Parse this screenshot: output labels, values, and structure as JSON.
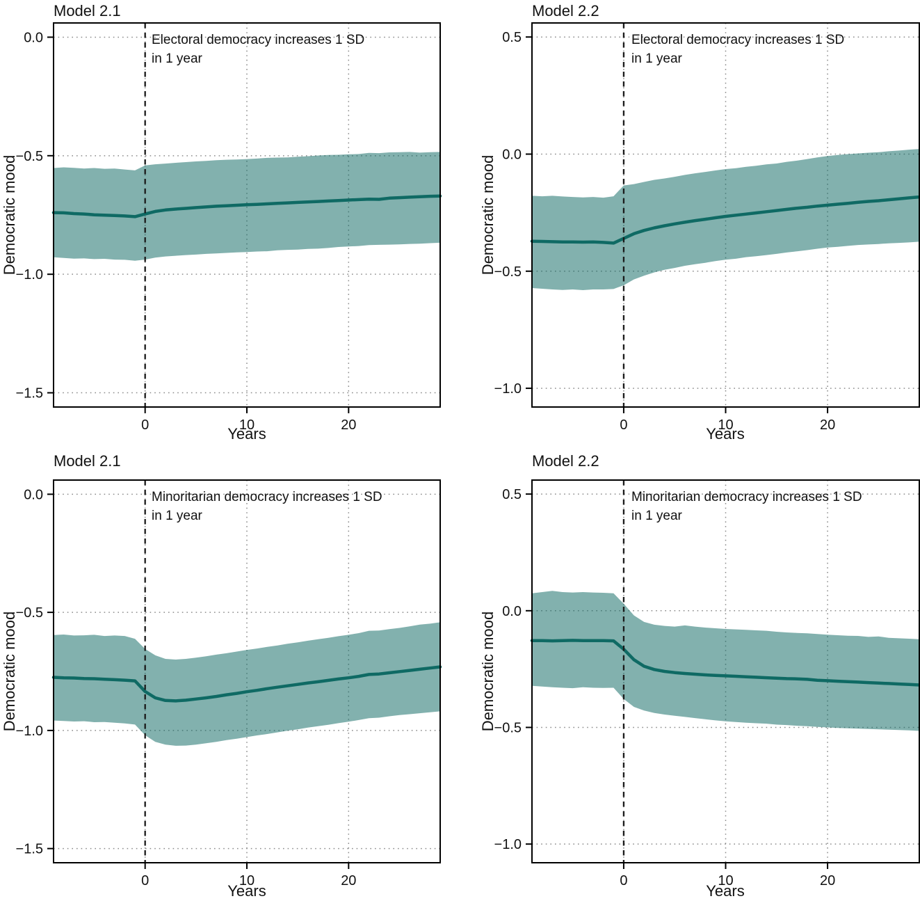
{
  "style": {
    "line_color": "#0f6a64",
    "band_color": "#0f6a64",
    "band_opacity": 0.52,
    "grid_color": "#8a8a8a",
    "event_line_color": "#1a1a1a",
    "border_color": "#000000",
    "tick_color": "#000000",
    "text_color": "#111111",
    "background": "#ffffff"
  },
  "chart_data": [
    {
      "type": "line",
      "title": "Model 2.1",
      "annotation_line1": "Electoral democracy increases 1 SD",
      "annotation_line2": "in 1 year",
      "xlabel": "Years",
      "ylabel": "Democratic mood",
      "legend": "none",
      "grid": true,
      "xlim": [
        -9,
        29
      ],
      "ylim": [
        -1.56,
        0.06
      ],
      "event_x": 0,
      "xticks": [
        {
          "v": 0,
          "label": "0"
        },
        {
          "v": 10,
          "label": "10"
        },
        {
          "v": 20,
          "label": "20"
        }
      ],
      "yticks": [
        {
          "v": 0,
          "label": "0.0"
        },
        {
          "v": -0.5,
          "label": "−0.5"
        },
        {
          "v": -1,
          "label": "−1.0"
        },
        {
          "v": -1.5,
          "label": "−1.5"
        }
      ],
      "x": [
        -9,
        -8,
        -7,
        -6,
        -5,
        -4,
        -3,
        -2,
        -1,
        0,
        1,
        2,
        3,
        4,
        5,
        6,
        7,
        8,
        9,
        10,
        11,
        12,
        13,
        14,
        15,
        16,
        17,
        18,
        19,
        20,
        21,
        22,
        23,
        24,
        25,
        26,
        27,
        28,
        29
      ],
      "mean": [
        -0.74,
        -0.741,
        -0.744,
        -0.746,
        -0.749,
        -0.751,
        -0.752,
        -0.754,
        -0.757,
        -0.746,
        -0.735,
        -0.729,
        -0.725,
        -0.722,
        -0.719,
        -0.716,
        -0.713,
        -0.711,
        -0.709,
        -0.707,
        -0.705,
        -0.703,
        -0.701,
        -0.699,
        -0.697,
        -0.695,
        -0.693,
        -0.691,
        -0.689,
        -0.687,
        -0.685,
        -0.683,
        -0.684,
        -0.679,
        -0.677,
        -0.675,
        -0.673,
        -0.671,
        -0.67
      ],
      "upper": [
        -0.552,
        -0.549,
        -0.551,
        -0.554,
        -0.552,
        -0.555,
        -0.554,
        -0.558,
        -0.562,
        -0.541,
        -0.536,
        -0.533,
        -0.53,
        -0.527,
        -0.524,
        -0.522,
        -0.519,
        -0.517,
        -0.516,
        -0.514,
        -0.512,
        -0.509,
        -0.508,
        -0.507,
        -0.504,
        -0.502,
        -0.499,
        -0.497,
        -0.496,
        -0.494,
        -0.493,
        -0.488,
        -0.489,
        -0.486,
        -0.485,
        -0.484,
        -0.487,
        -0.485,
        -0.484
      ],
      "lower": [
        -0.928,
        -0.931,
        -0.934,
        -0.933,
        -0.936,
        -0.935,
        -0.938,
        -0.939,
        -0.943,
        -0.938,
        -0.93,
        -0.925,
        -0.922,
        -0.919,
        -0.917,
        -0.914,
        -0.912,
        -0.91,
        -0.908,
        -0.906,
        -0.904,
        -0.903,
        -0.899,
        -0.897,
        -0.896,
        -0.893,
        -0.892,
        -0.889,
        -0.885,
        -0.883,
        -0.881,
        -0.877,
        -0.876,
        -0.875,
        -0.874,
        -0.872,
        -0.871,
        -0.869,
        -0.867
      ]
    },
    {
      "type": "line",
      "title": "Model 2.2",
      "annotation_line1": "Electoral democracy increases 1 SD",
      "annotation_line2": "in 1 year",
      "xlabel": "Years",
      "ylabel": "Democratic mood",
      "legend": "none",
      "grid": true,
      "xlim": [
        -9,
        29
      ],
      "ylim": [
        -1.08,
        0.56
      ],
      "event_x": 0,
      "xticks": [
        {
          "v": 0,
          "label": "0"
        },
        {
          "v": 10,
          "label": "10"
        },
        {
          "v": 20,
          "label": "20"
        }
      ],
      "yticks": [
        {
          "v": 0.5,
          "label": "0.5"
        },
        {
          "v": 0,
          "label": "0.0"
        },
        {
          "v": -0.5,
          "label": "−0.5"
        },
        {
          "v": -1,
          "label": "−1.0"
        }
      ],
      "x": [
        -9,
        -8,
        -7,
        -6,
        -5,
        -4,
        -3,
        -2,
        -1,
        0,
        1,
        2,
        3,
        4,
        5,
        6,
        7,
        8,
        9,
        10,
        11,
        12,
        13,
        14,
        15,
        16,
        17,
        18,
        19,
        20,
        21,
        22,
        23,
        24,
        25,
        26,
        27,
        28,
        29
      ],
      "mean": [
        -0.372,
        -0.373,
        -0.374,
        -0.375,
        -0.375,
        -0.376,
        -0.375,
        -0.377,
        -0.38,
        -0.36,
        -0.34,
        -0.326,
        -0.315,
        -0.306,
        -0.298,
        -0.291,
        -0.284,
        -0.278,
        -0.272,
        -0.266,
        -0.261,
        -0.256,
        -0.251,
        -0.246,
        -0.241,
        -0.236,
        -0.231,
        -0.227,
        -0.222,
        -0.218,
        -0.214,
        -0.21,
        -0.206,
        -0.202,
        -0.199,
        -0.195,
        -0.191,
        -0.187,
        -0.183
      ],
      "upper": [
        -0.178,
        -0.18,
        -0.178,
        -0.181,
        -0.183,
        -0.185,
        -0.183,
        -0.186,
        -0.18,
        -0.134,
        -0.128,
        -0.119,
        -0.11,
        -0.104,
        -0.097,
        -0.089,
        -0.082,
        -0.076,
        -0.07,
        -0.064,
        -0.06,
        -0.054,
        -0.05,
        -0.044,
        -0.04,
        -0.033,
        -0.028,
        -0.021,
        -0.014,
        -0.008,
        -0.004,
        0.0,
        0.003,
        0.006,
        0.008,
        0.012,
        0.015,
        0.019,
        0.022
      ],
      "lower": [
        -0.572,
        -0.575,
        -0.578,
        -0.58,
        -0.578,
        -0.581,
        -0.578,
        -0.578,
        -0.576,
        -0.56,
        -0.535,
        -0.519,
        -0.505,
        -0.494,
        -0.486,
        -0.477,
        -0.47,
        -0.464,
        -0.457,
        -0.451,
        -0.447,
        -0.44,
        -0.436,
        -0.431,
        -0.426,
        -0.42,
        -0.415,
        -0.41,
        -0.404,
        -0.399,
        -0.396,
        -0.392,
        -0.388,
        -0.386,
        -0.384,
        -0.381,
        -0.379,
        -0.377,
        -0.374
      ]
    },
    {
      "type": "line",
      "title": "Model 2.1",
      "annotation_line1": "Minoritarian democracy increases 1 SD",
      "annotation_line2": "in 1 year",
      "xlabel": "Years",
      "ylabel": "Democratic mood",
      "legend": "none",
      "grid": true,
      "xlim": [
        -9,
        29
      ],
      "ylim": [
        -1.56,
        0.06
      ],
      "event_x": 0,
      "xticks": [
        {
          "v": 0,
          "label": "0"
        },
        {
          "v": 10,
          "label": "10"
        },
        {
          "v": 20,
          "label": "20"
        }
      ],
      "yticks": [
        {
          "v": 0,
          "label": "0.0"
        },
        {
          "v": -0.5,
          "label": "−0.5"
        },
        {
          "v": -1,
          "label": "−1.0"
        },
        {
          "v": -1.5,
          "label": "−1.5"
        }
      ],
      "x": [
        -9,
        -8,
        -7,
        -6,
        -5,
        -4,
        -3,
        -2,
        -1,
        0,
        1,
        2,
        3,
        4,
        5,
        6,
        7,
        8,
        9,
        10,
        11,
        12,
        13,
        14,
        15,
        16,
        17,
        18,
        19,
        20,
        21,
        22,
        23,
        24,
        25,
        26,
        27,
        28,
        29
      ],
      "mean": [
        -0.775,
        -0.777,
        -0.778,
        -0.78,
        -0.781,
        -0.783,
        -0.785,
        -0.787,
        -0.79,
        -0.835,
        -0.862,
        -0.873,
        -0.875,
        -0.872,
        -0.867,
        -0.862,
        -0.856,
        -0.849,
        -0.843,
        -0.836,
        -0.83,
        -0.823,
        -0.817,
        -0.811,
        -0.805,
        -0.799,
        -0.794,
        -0.788,
        -0.782,
        -0.777,
        -0.771,
        -0.763,
        -0.761,
        -0.756,
        -0.751,
        -0.746,
        -0.741,
        -0.736,
        -0.731
      ],
      "upper": [
        -0.596,
        -0.594,
        -0.598,
        -0.597,
        -0.595,
        -0.6,
        -0.598,
        -0.6,
        -0.612,
        -0.655,
        -0.682,
        -0.697,
        -0.7,
        -0.697,
        -0.692,
        -0.686,
        -0.679,
        -0.673,
        -0.666,
        -0.659,
        -0.653,
        -0.646,
        -0.64,
        -0.633,
        -0.627,
        -0.62,
        -0.614,
        -0.608,
        -0.601,
        -0.595,
        -0.588,
        -0.578,
        -0.577,
        -0.571,
        -0.566,
        -0.559,
        -0.552,
        -0.548,
        -0.542
      ],
      "lower": [
        -0.958,
        -0.96,
        -0.962,
        -0.961,
        -0.965,
        -0.964,
        -0.967,
        -0.97,
        -0.975,
        -1.02,
        -1.048,
        -1.06,
        -1.065,
        -1.064,
        -1.06,
        -1.054,
        -1.048,
        -1.041,
        -1.035,
        -1.028,
        -1.021,
        -1.015,
        -1.008,
        -1.001,
        -0.995,
        -0.988,
        -0.982,
        -0.976,
        -0.969,
        -0.963,
        -0.956,
        -0.948,
        -0.946,
        -0.94,
        -0.935,
        -0.931,
        -0.927,
        -0.923,
        -0.919
      ]
    },
    {
      "type": "line",
      "title": "Model 2.2",
      "annotation_line1": "Minoritarian democracy increases 1 SD",
      "annotation_line2": "in 1 year",
      "xlabel": "Years",
      "ylabel": "Democratic mood",
      "legend": "none",
      "grid": true,
      "xlim": [
        -9,
        29
      ],
      "ylim": [
        -1.08,
        0.56
      ],
      "event_x": 0,
      "xticks": [
        {
          "v": 0,
          "label": "0"
        },
        {
          "v": 10,
          "label": "10"
        },
        {
          "v": 20,
          "label": "20"
        }
      ],
      "yticks": [
        {
          "v": 0.5,
          "label": "0.5"
        },
        {
          "v": 0,
          "label": "0.0"
        },
        {
          "v": -0.5,
          "label": "−0.5"
        },
        {
          "v": -1,
          "label": "−1.0"
        }
      ],
      "x": [
        -9,
        -8,
        -7,
        -6,
        -5,
        -4,
        -3,
        -2,
        -1,
        0,
        1,
        2,
        3,
        4,
        5,
        6,
        7,
        8,
        9,
        10,
        11,
        12,
        13,
        14,
        15,
        16,
        17,
        18,
        19,
        20,
        21,
        22,
        23,
        24,
        25,
        26,
        27,
        28,
        29
      ],
      "mean": [
        -0.128,
        -0.128,
        -0.129,
        -0.128,
        -0.127,
        -0.128,
        -0.128,
        -0.128,
        -0.129,
        -0.165,
        -0.21,
        -0.238,
        -0.252,
        -0.26,
        -0.265,
        -0.269,
        -0.272,
        -0.275,
        -0.277,
        -0.279,
        -0.281,
        -0.283,
        -0.285,
        -0.287,
        -0.289,
        -0.291,
        -0.292,
        -0.294,
        -0.298,
        -0.3,
        -0.302,
        -0.304,
        -0.306,
        -0.308,
        -0.31,
        -0.312,
        -0.314,
        -0.316,
        -0.318
      ],
      "upper": [
        0.075,
        0.08,
        0.085,
        0.08,
        0.078,
        0.08,
        0.078,
        0.077,
        0.075,
        0.03,
        -0.02,
        -0.048,
        -0.06,
        -0.065,
        -0.068,
        -0.063,
        -0.068,
        -0.072,
        -0.075,
        -0.078,
        -0.08,
        -0.082,
        -0.084,
        -0.086,
        -0.09,
        -0.093,
        -0.095,
        -0.097,
        -0.1,
        -0.103,
        -0.105,
        -0.107,
        -0.108,
        -0.112,
        -0.11,
        -0.116,
        -0.118,
        -0.12,
        -0.122
      ],
      "lower": [
        -0.322,
        -0.325,
        -0.328,
        -0.33,
        -0.332,
        -0.328,
        -0.33,
        -0.331,
        -0.33,
        -0.378,
        -0.412,
        -0.428,
        -0.438,
        -0.445,
        -0.45,
        -0.455,
        -0.46,
        -0.465,
        -0.47,
        -0.474,
        -0.477,
        -0.48,
        -0.482,
        -0.484,
        -0.488,
        -0.49,
        -0.493,
        -0.495,
        -0.498,
        -0.5,
        -0.502,
        -0.504,
        -0.505,
        -0.507,
        -0.508,
        -0.51,
        -0.511,
        -0.513,
        -0.515
      ]
    }
  ]
}
